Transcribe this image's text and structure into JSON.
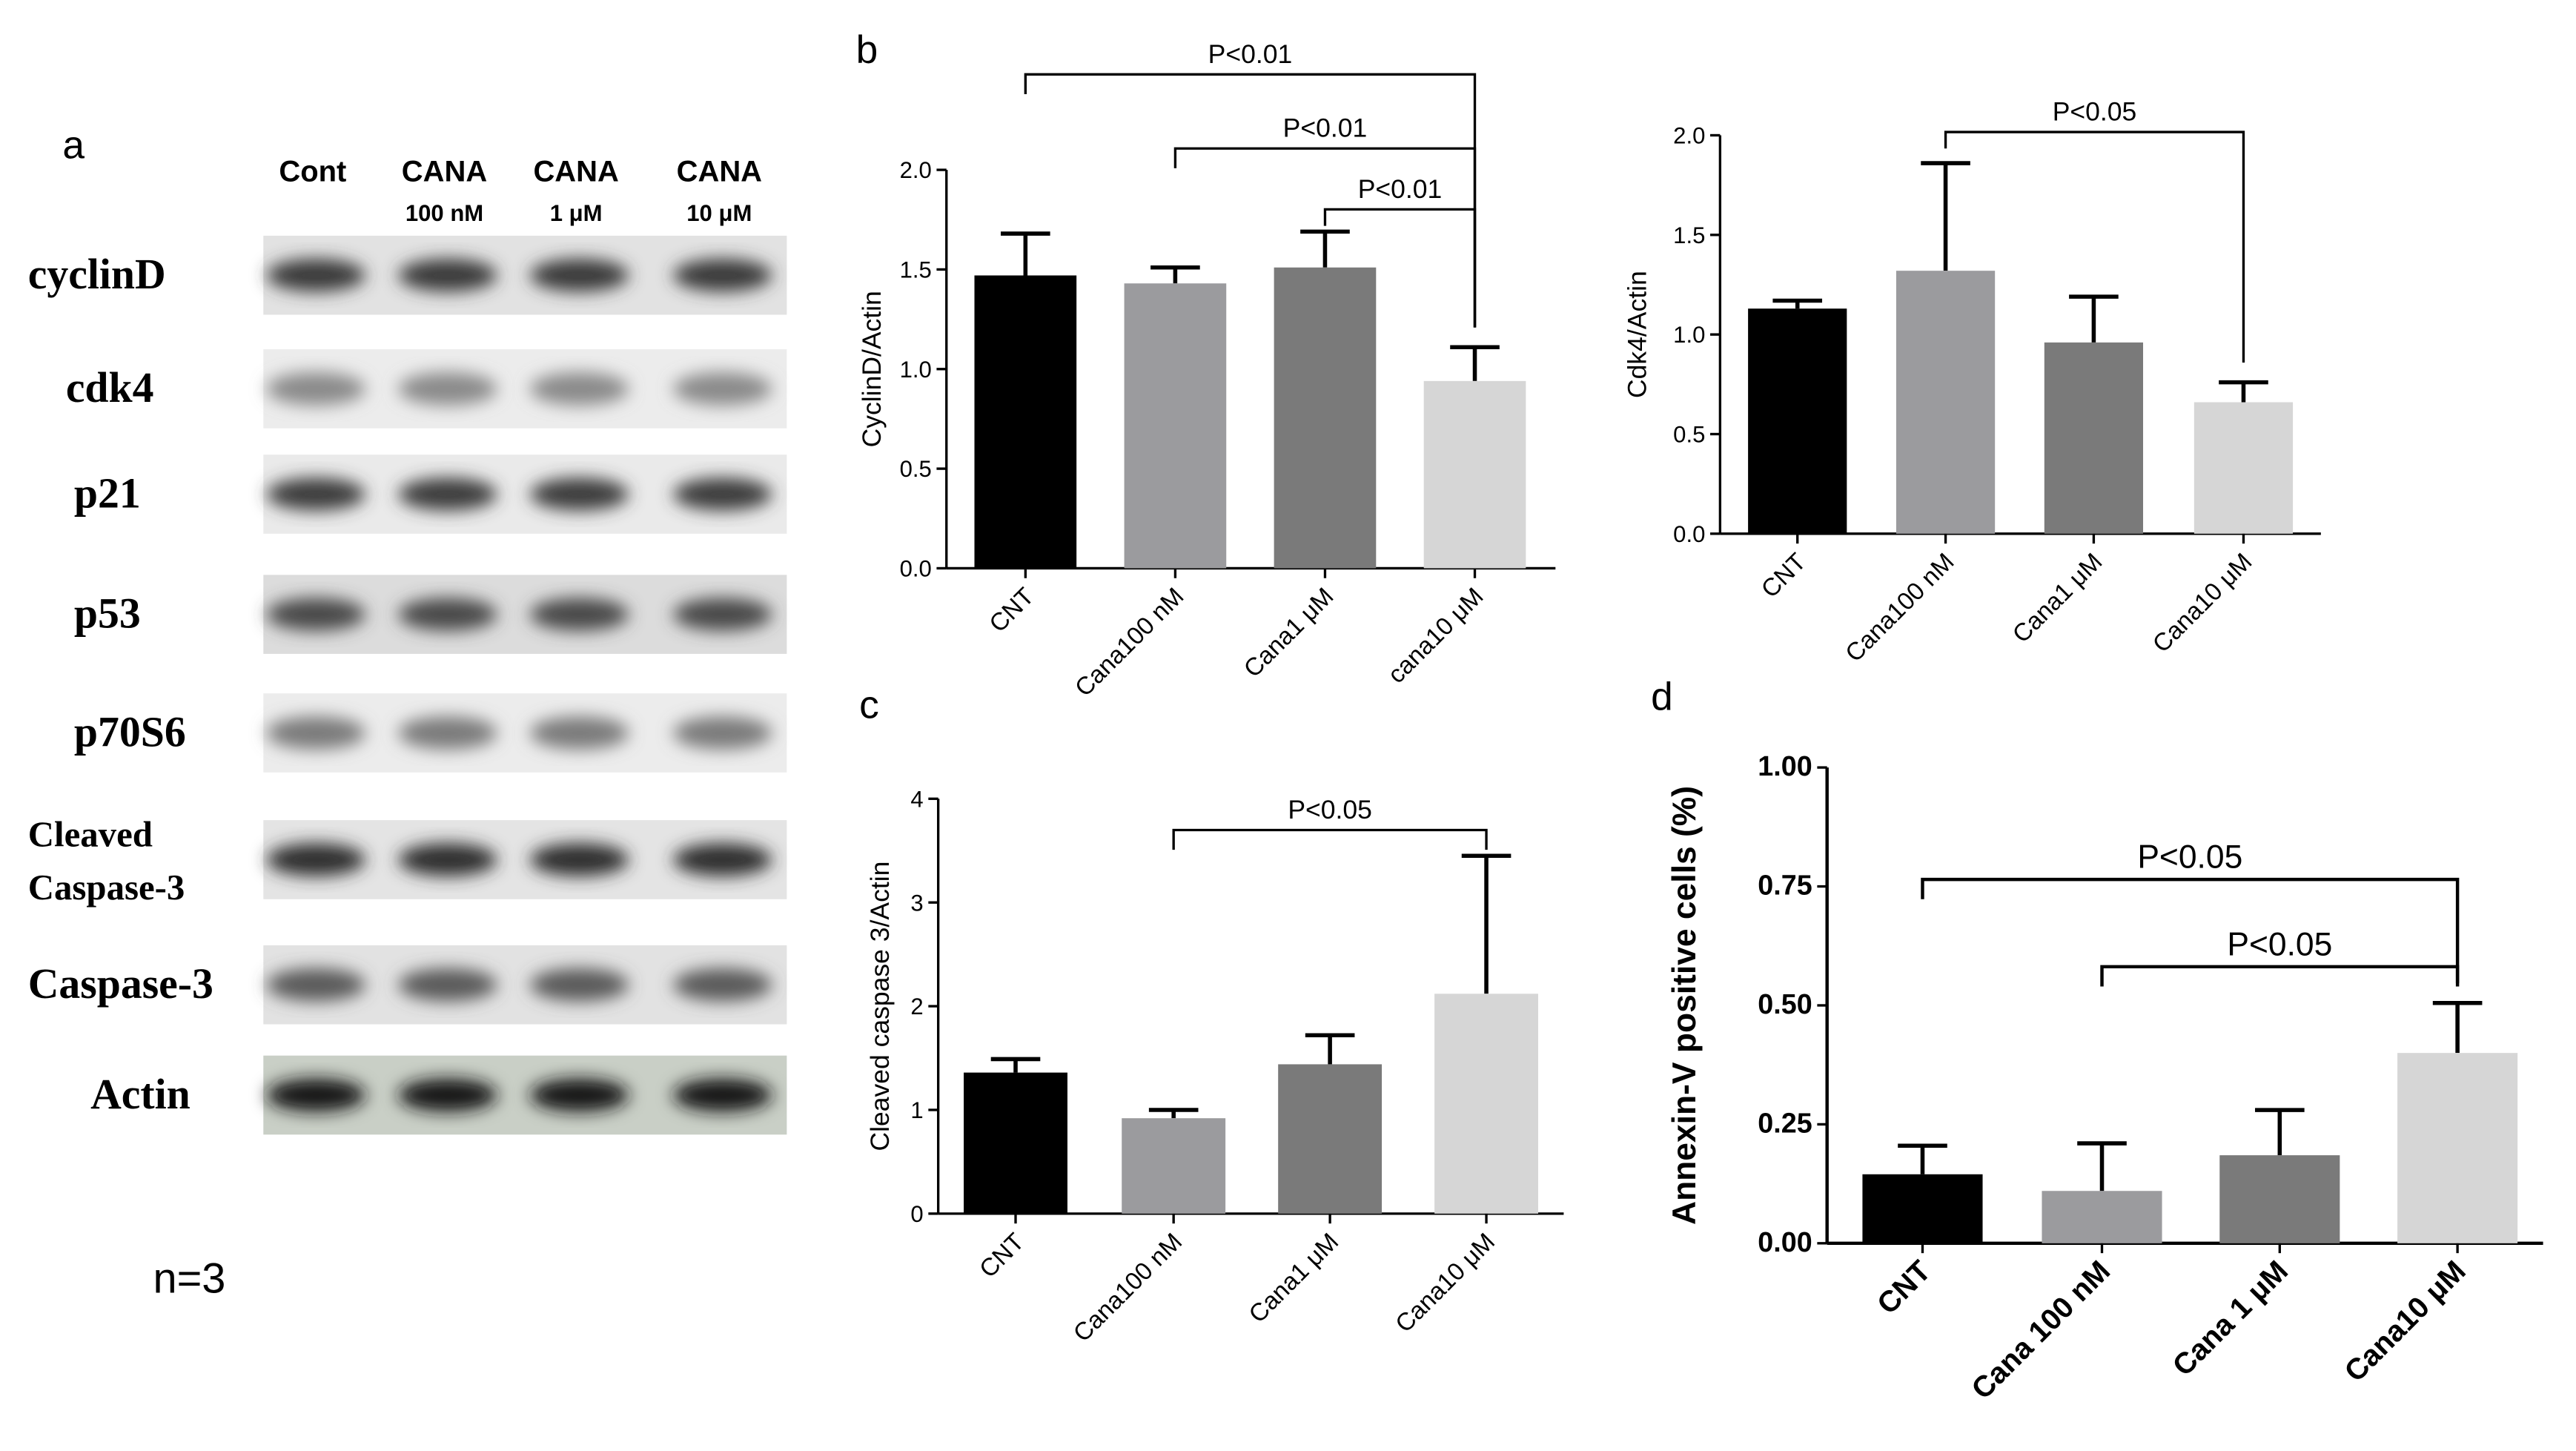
{
  "blot": {
    "panel_label": "a",
    "lanes": [
      {
        "name": "Cont"
      },
      {
        "name": "CANA",
        "dose": "100 nM"
      },
      {
        "name": "CANA",
        "dose": "1 μM"
      },
      {
        "name": "CANA",
        "dose": "10 μM"
      }
    ],
    "rows": [
      [
        "cyclinD"
      ],
      [
        "cdk4"
      ],
      [
        "p21"
      ],
      [
        "p53"
      ],
      [
        "p70S6"
      ],
      [
        "Cleaved",
        "Caspase-3"
      ],
      [
        "Caspase-3"
      ],
      [
        "Actin"
      ]
    ],
    "note": "n=3"
  },
  "chart_data": [
    {
      "type": "bar",
      "panel_label": "b",
      "y_label": "CyclinD/Actin",
      "categories": [
        "CNT",
        "Cana100 nM",
        "Cana1 μM",
        "cana10 μM"
      ],
      "values": [
        1.47,
        1.43,
        1.51,
        0.94
      ],
      "errors": [
        0.21,
        0.08,
        0.18,
        0.17
      ],
      "colors": [
        "#000000",
        "#9b9b9e",
        "#7a7a7a",
        "#d6d6d6"
      ],
      "ylim": [
        0,
        2
      ],
      "yticks": [
        {
          "value": 0,
          "label": "0.0"
        },
        {
          "value": 0.5,
          "label": "0.5"
        },
        {
          "value": 1,
          "label": "1.0"
        },
        {
          "value": 1.5,
          "label": "1.5"
        },
        {
          "value": 2,
          "label": "2.0"
        }
      ],
      "annotations": [
        {
          "label": "P<0.01",
          "pair": [
            0,
            3
          ]
        },
        {
          "label": "P<0.01",
          "pair": [
            1,
            3
          ]
        },
        {
          "label": "P<0.01",
          "pair": [
            2,
            3
          ]
        }
      ]
    },
    {
      "type": "bar",
      "y_label": "Cdk4/Actin",
      "categories": [
        "CNT",
        "Cana100 nM",
        "Cana1 μM",
        "Cana10 μM"
      ],
      "values": [
        1.13,
        1.32,
        0.96,
        0.66
      ],
      "errors": [
        0.04,
        0.54,
        0.23,
        0.1
      ],
      "colors": [
        "#000000",
        "#9b9b9e",
        "#7a7a7a",
        "#d6d6d6"
      ],
      "ylim": [
        0,
        2
      ],
      "yticks": [
        {
          "value": 0,
          "label": "0.0"
        },
        {
          "value": 0.5,
          "label": "0.5"
        },
        {
          "value": 1,
          "label": "1.0"
        },
        {
          "value": 1.5,
          "label": "1.5"
        },
        {
          "value": 2,
          "label": "2.0"
        }
      ],
      "annotations": [
        {
          "label": "P<0.05",
          "pair": [
            1,
            3
          ]
        }
      ]
    },
    {
      "type": "bar",
      "panel_label": "c",
      "y_label": "Cleaved caspase 3/Actin",
      "categories": [
        "CNT",
        "Cana100 nM",
        "Cana1 μM",
        "Cana10 μM"
      ],
      "values": [
        1.36,
        0.92,
        1.44,
        2.12
      ],
      "errors": [
        0.13,
        0.08,
        0.28,
        1.33
      ],
      "colors": [
        "#000000",
        "#9b9b9e",
        "#7a7a7a",
        "#d6d6d6"
      ],
      "ylim": [
        0,
        4
      ],
      "yticks": [
        0,
        1,
        2,
        3,
        4
      ],
      "annotations": [
        {
          "label": "P<0.05",
          "pair": [
            1,
            3
          ]
        }
      ]
    },
    {
      "type": "bar",
      "panel_label": "d",
      "y_label": "Annexin-V positive cells (%)",
      "categories": [
        "CNT",
        "Cana 100 nM",
        "Cana 1 μM",
        "Cana10 μM"
      ],
      "values": [
        0.145,
        0.11,
        0.185,
        0.4
      ],
      "errors": [
        0.06,
        0.1,
        0.095,
        0.105
      ],
      "colors": [
        "#000000",
        "#9b9b9e",
        "#7a7a7a",
        "#d6d6d6"
      ],
      "ylim": [
        0,
        1
      ],
      "yticks": [
        {
          "value": 0,
          "label": "0.00"
        },
        {
          "value": 0.25,
          "label": "0.25"
        },
        {
          "value": 0.5,
          "label": "0.50"
        },
        {
          "value": 0.75,
          "label": "0.75"
        },
        {
          "value": 1,
          "label": "1.00"
        }
      ],
      "annotations": [
        {
          "label": "P<0.05",
          "pair": [
            0,
            3
          ]
        },
        {
          "label": "P<0.05",
          "pair": [
            1,
            3
          ]
        }
      ]
    }
  ]
}
